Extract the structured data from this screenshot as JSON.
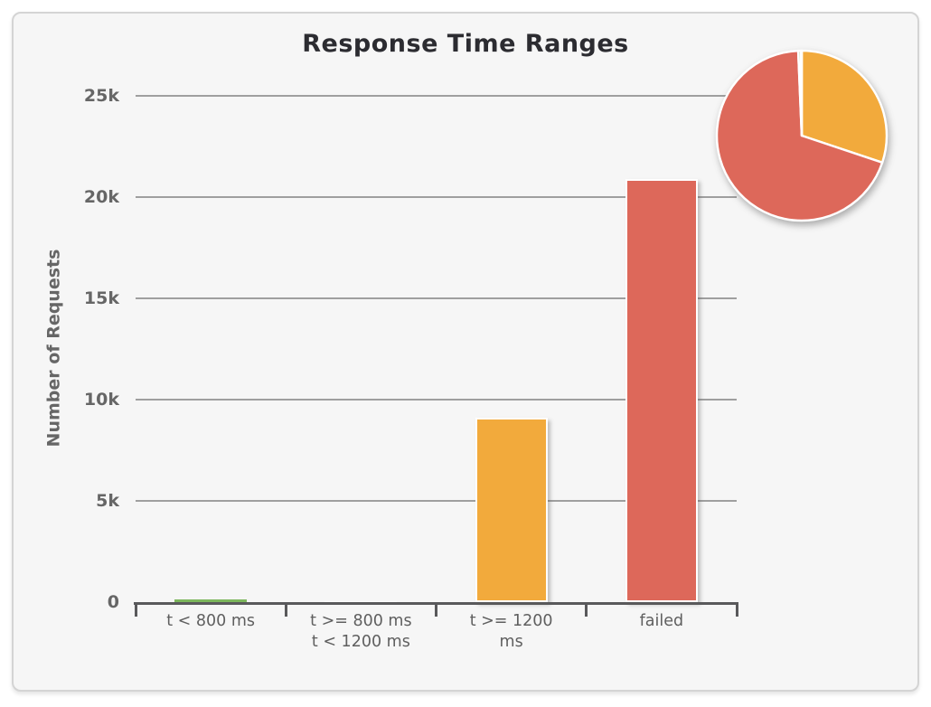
{
  "panel": {
    "background": "#f6f6f6",
    "border_color": "#d4d4d4"
  },
  "chart": {
    "title": "Response Time Ranges",
    "yaxis_title": "Number of Requests",
    "colors": {
      "grid": "#9f9f9f",
      "axis": "#59595b",
      "tick_label": "#666666",
      "xtick_label": "#5f5f5f",
      "title": "#2c2c31"
    }
  },
  "chart_data": [
    {
      "type": "bar",
      "title": "Response Time Ranges",
      "xlabel": "",
      "ylabel": "Number of Requests",
      "categories": [
        "t < 800 ms",
        "t >= 800 ms\nt < 1200 ms",
        "t >= 1200\nms",
        "failed"
      ],
      "values": [
        150,
        50,
        9100,
        20900
      ],
      "colors": [
        "#7cb65c",
        "#ffffff",
        "#f2aa3c",
        "#dd685a"
      ],
      "ylim": [
        0,
        25000
      ],
      "yticks": [
        {
          "value": 0,
          "label": "0"
        },
        {
          "value": 5000,
          "label": "5k"
        },
        {
          "value": 10000,
          "label": "10k"
        },
        {
          "value": 15000,
          "label": "15k"
        },
        {
          "value": 20000,
          "label": "20k"
        },
        {
          "value": 25000,
          "label": "25k"
        }
      ],
      "grid": true,
      "legend": false
    },
    {
      "type": "pie",
      "position": "top-right-inset",
      "labels": [
        "t >= 1200 ms",
        "failed",
        "t < 800 ms",
        "t >= 800 ms t < 1200 ms"
      ],
      "values": [
        9100,
        20900,
        150,
        50
      ],
      "colors": [
        "#f2aa3c",
        "#dd685a",
        "#7cb65c",
        "#ffffff"
      ]
    }
  ]
}
